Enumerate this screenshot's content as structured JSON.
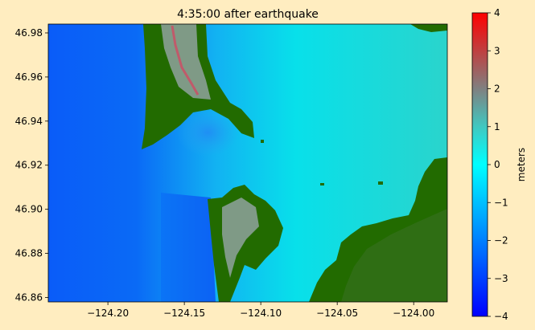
{
  "chart_data": {
    "type": "heatmap",
    "title": "4:35:00 after earthquake",
    "xlabel": "",
    "ylabel": "",
    "xlim": [
      -124.239,
      -123.978
    ],
    "ylim": [
      46.858,
      46.984
    ],
    "x_ticks": [
      -124.2,
      -124.15,
      -124.1,
      -124.05,
      -124.0
    ],
    "x_tick_labels": [
      "−124.20",
      "−124.15",
      "−124.10",
      "−124.05",
      "−124.00"
    ],
    "y_ticks": [
      46.86,
      46.88,
      46.9,
      46.92,
      46.94,
      46.96,
      46.98
    ],
    "y_tick_labels": [
      "46.86",
      "46.88",
      "46.90",
      "46.92",
      "46.94",
      "46.96",
      "46.98"
    ],
    "colorbar": {
      "label": "meters",
      "range": [
        -4,
        4
      ],
      "ticks": [
        -4,
        -3,
        -2,
        -1,
        0,
        1,
        2,
        3,
        4
      ],
      "tick_labels": [
        "−4",
        "−3",
        "−2",
        "−1",
        "0",
        "1",
        "2",
        "3",
        "4"
      ],
      "colormap": [
        {
          "v": -4,
          "color": "#0000ff"
        },
        {
          "v": -2,
          "color": "#0080ff"
        },
        {
          "v": 0,
          "color": "#00ffff"
        },
        {
          "v": 1,
          "color": "#40c8c0"
        },
        {
          "v": 2,
          "color": "#808080"
        },
        {
          "v": 4,
          "color": "#ff0000"
        }
      ]
    },
    "colors": {
      "land": "#226b00",
      "background": "#ffedc0"
    }
  }
}
